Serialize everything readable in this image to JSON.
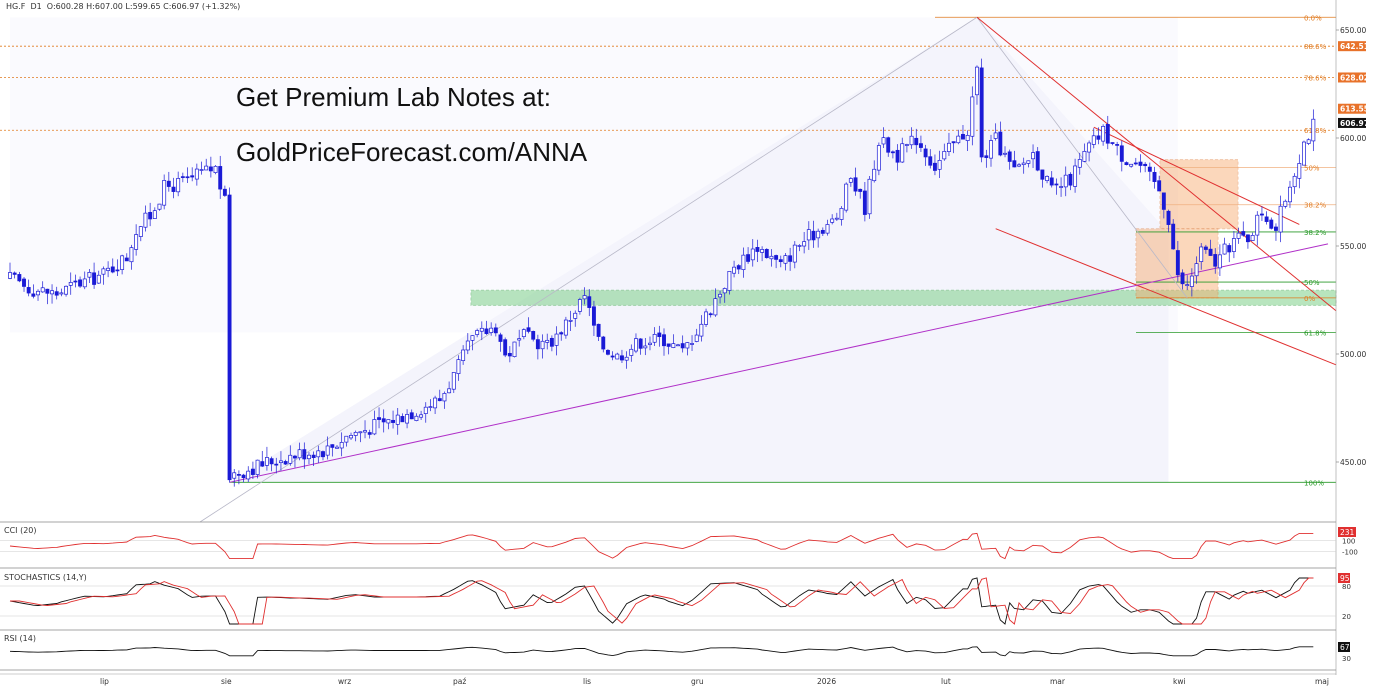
{
  "header": {
    "symbol": "HG.F",
    "timeframe": "D1",
    "ohlc_text": "O:600.28  H:607.00  L:599.65  C:606.97  (+1.32%)"
  },
  "promo": {
    "line1": "Get Premium Lab Notes at:",
    "line2": "GoldPriceForecast.com/ANNA"
  },
  "colors": {
    "candle": "#1a1ad6",
    "fib_orange": "#e07a1f",
    "fib_green": "#2a9a2a",
    "support_zone": "#7fd18a",
    "channel_red": "#e03030",
    "trend_purple": "#b030c8",
    "box_orange": "#f7a86a",
    "cci_line": "#e03030",
    "stoch_k": "#111111",
    "stoch_d": "#e03030",
    "rsi_line": "#111111"
  },
  "chart_data": [
    {
      "type": "candlestick",
      "title": "HG.F D1",
      "ylim": [
        430,
        658
      ],
      "y_ticks": [
        450,
        500,
        550,
        600,
        650
      ],
      "x_ticks": [
        "lip",
        "sie",
        "wrz",
        "paź",
        "lis",
        "gru",
        "2026",
        "lut",
        "mar",
        "kwi",
        "maj"
      ],
      "price_labels": [
        {
          "text": "642.51",
          "value": 642.51,
          "color": "#e8722a"
        },
        {
          "text": "628.02",
          "value": 628.02,
          "color": "#e8722a"
        },
        {
          "text": "613.55",
          "value": 613.55,
          "color": "#e8722a"
        },
        {
          "text": "606.97",
          "value": 606.97,
          "color": "#111111"
        }
      ],
      "fib_upper": [
        {
          "label": "0.0%",
          "value": 655.9
        },
        {
          "label": "88.6%",
          "value": 642.5
        },
        {
          "label": "78.6%",
          "value": 628.0
        },
        {
          "label": "61.8%",
          "value": 603.6
        },
        {
          "label": "50%",
          "value": 586.4
        },
        {
          "label": "38.2%",
          "value": 569.1
        }
      ],
      "fib_lower": [
        {
          "label": "38.2%",
          "value": 556.5
        },
        {
          "label": "50%",
          "value": 533.3
        },
        {
          "label": "0%",
          "value": 526.0
        },
        {
          "label": "61.8%",
          "value": 510.0
        },
        {
          "label": "100%",
          "value": 440.6
        }
      ],
      "support_zone": [
        522.5,
        529.5
      ],
      "keypoints": [
        {
          "x": 0,
          "y": 535
        },
        {
          "x": 5,
          "y": 530
        },
        {
          "x": 10,
          "y": 528
        },
        {
          "x": 15,
          "y": 533
        },
        {
          "x": 20,
          "y": 537
        },
        {
          "x": 25,
          "y": 545
        },
        {
          "x": 27,
          "y": 558
        },
        {
          "x": 30,
          "y": 564
        },
        {
          "x": 33,
          "y": 577
        },
        {
          "x": 38,
          "y": 580
        },
        {
          "x": 41,
          "y": 584
        },
        {
          "x": 44,
          "y": 586
        },
        {
          "x": 46,
          "y": 570
        },
        {
          "x": 47,
          "y": 444
        },
        {
          "x": 50,
          "y": 446
        },
        {
          "x": 55,
          "y": 450
        },
        {
          "x": 62,
          "y": 454
        },
        {
          "x": 68,
          "y": 456
        },
        {
          "x": 72,
          "y": 462
        },
        {
          "x": 77,
          "y": 466
        },
        {
          "x": 82,
          "y": 470
        },
        {
          "x": 87,
          "y": 474
        },
        {
          "x": 92,
          "y": 479
        },
        {
          "x": 95,
          "y": 490
        },
        {
          "x": 99,
          "y": 507
        },
        {
          "x": 104,
          "y": 513
        },
        {
          "x": 106,
          "y": 499
        },
        {
          "x": 110,
          "y": 508
        },
        {
          "x": 115,
          "y": 504
        },
        {
          "x": 119,
          "y": 514
        },
        {
          "x": 123,
          "y": 527
        },
        {
          "x": 126,
          "y": 505
        },
        {
          "x": 130,
          "y": 499
        },
        {
          "x": 135,
          "y": 506
        },
        {
          "x": 140,
          "y": 507
        },
        {
          "x": 144,
          "y": 501
        },
        {
          "x": 149,
          "y": 518
        },
        {
          "x": 155,
          "y": 540
        },
        {
          "x": 160,
          "y": 550
        },
        {
          "x": 165,
          "y": 541
        },
        {
          "x": 169,
          "y": 551
        },
        {
          "x": 174,
          "y": 559
        },
        {
          "x": 177,
          "y": 562
        },
        {
          "x": 180,
          "y": 582
        },
        {
          "x": 183,
          "y": 568
        },
        {
          "x": 186,
          "y": 599
        },
        {
          "x": 190,
          "y": 592
        },
        {
          "x": 194,
          "y": 600
        },
        {
          "x": 198,
          "y": 587
        },
        {
          "x": 202,
          "y": 597
        },
        {
          "x": 205,
          "y": 604
        },
        {
          "x": 207,
          "y": 632
        },
        {
          "x": 208,
          "y": 590
        },
        {
          "x": 211,
          "y": 599
        },
        {
          "x": 215,
          "y": 584
        },
        {
          "x": 219,
          "y": 593
        },
        {
          "x": 223,
          "y": 575
        },
        {
          "x": 227,
          "y": 581
        },
        {
          "x": 231,
          "y": 596
        },
        {
          "x": 234,
          "y": 603
        },
        {
          "x": 238,
          "y": 592
        },
        {
          "x": 242,
          "y": 587
        },
        {
          "x": 246,
          "y": 576
        },
        {
          "x": 248,
          "y": 563
        },
        {
          "x": 250,
          "y": 535
        },
        {
          "x": 252,
          "y": 531
        },
        {
          "x": 255,
          "y": 548
        },
        {
          "x": 258,
          "y": 542
        },
        {
          "x": 262,
          "y": 553
        },
        {
          "x": 265,
          "y": 554
        },
        {
          "x": 268,
          "y": 566
        },
        {
          "x": 271,
          "y": 558
        },
        {
          "x": 274,
          "y": 579
        },
        {
          "x": 277,
          "y": 598
        },
        {
          "x": 279,
          "y": 606
        }
      ],
      "annotations": [
        "purple rising trendline from 440 (sie) to ~551 (right edge)",
        "red falling channel from lut high",
        "orange target boxes near kwi"
      ]
    },
    {
      "type": "line",
      "title": "CCI (20)",
      "y_ticks": [
        100,
        -100
      ],
      "last_value_label": "231"
    },
    {
      "type": "line",
      "title": "STOCHASTICS (14,Y)",
      "y_ticks": [
        80,
        20
      ],
      "last_value_label": "95"
    },
    {
      "type": "line",
      "title": "RSI (14)",
      "y_ticks": [
        70,
        30
      ],
      "last_value_label": "67"
    }
  ]
}
